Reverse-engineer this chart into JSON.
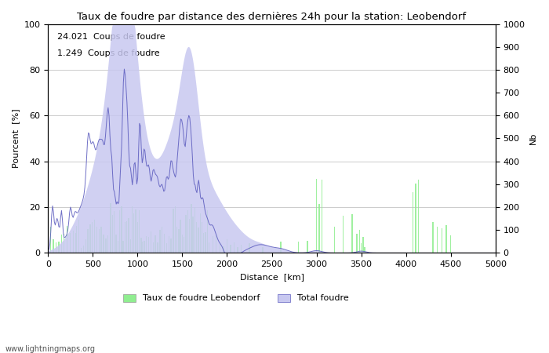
{
  "title": "Taux de foudre par distance des dernières 24h pour la station: Leobendorf",
  "xlabel": "Distance  [km]",
  "ylabel_left": "Pourcent  [%]",
  "ylabel_right": "Nb",
  "xlim": [
    0,
    5000
  ],
  "ylim_left": [
    0,
    100
  ],
  "ylim_right": [
    0,
    1000
  ],
  "annotation1": "24.021  Coups de foudre",
  "annotation2": "1.249  Coups de foudre",
  "legend1": "Taux de foudre Leobendorf",
  "legend2": "Total foudre",
  "watermark": "www.lightningmaps.org",
  "bar_color": "#90ee90",
  "fill_color": "#c8c8f0",
  "line_color": "#6060c0",
  "background_color": "#ffffff",
  "grid_color": "#888888",
  "xticks": [
    0,
    500,
    1000,
    1500,
    2000,
    2500,
    3000,
    3500,
    4000,
    4500,
    5000
  ],
  "yticks_left": [
    0,
    20,
    40,
    60,
    80,
    100
  ],
  "yticks_right": [
    0,
    100,
    200,
    300,
    400,
    500,
    600,
    700,
    800,
    900,
    1000
  ]
}
